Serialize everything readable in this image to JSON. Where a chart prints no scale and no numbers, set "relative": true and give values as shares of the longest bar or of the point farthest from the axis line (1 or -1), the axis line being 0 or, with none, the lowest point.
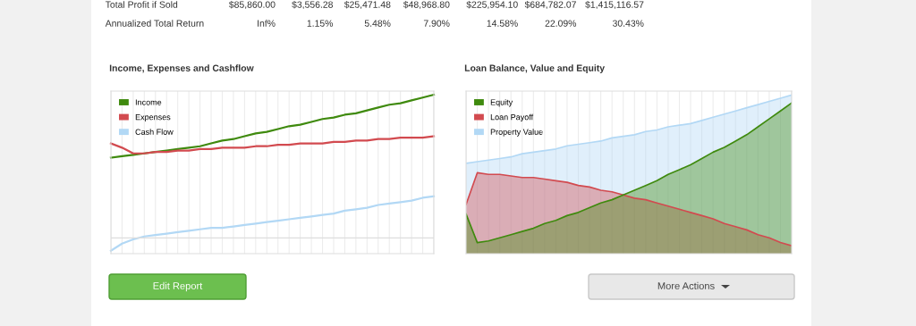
{
  "chart_data": [
    {
      "type": "other",
      "annotations": [
        "Total Profit if Sold",
        "$85,860.00",
        "$3,556.28",
        "$25,471.48",
        "$48,968.80",
        "$225,954.10",
        "$684,782.07",
        "$1,415,116.57",
        "Annualized Total Return",
        "Inf%",
        "1.15%",
        "5.48%",
        "7.90%",
        "14.58%",
        "22.09%",
        "30.43%"
      ]
    },
    {
      "type": "line",
      "title": "Income, Expenses and Cashflow",
      "relative": true,
      "grid": "x",
      "legend": "top left",
      "marker": "none",
      "line_style": "solid",
      "categories": [
        null,
        null,
        null,
        null,
        null,
        null,
        null,
        null,
        null,
        null,
        null,
        null,
        null,
        null,
        null,
        null,
        null,
        null,
        null,
        null,
        null,
        null,
        null,
        null,
        null,
        null,
        null,
        null,
        null,
        null
      ],
      "series": [
        {
          "name": "Income",
          "color": "#3f8a0e",
          "values": [
            0.56,
            0.57,
            0.58,
            0.59,
            0.6,
            0.61,
            0.62,
            0.63,
            0.64,
            0.66,
            0.68,
            0.69,
            0.71,
            0.73,
            0.74,
            0.76,
            0.78,
            0.79,
            0.81,
            0.83,
            0.84,
            0.86,
            0.87,
            0.89,
            0.91,
            0.93,
            0.94,
            0.96,
            0.98,
            1.0
          ]
        },
        {
          "name": "Expenses",
          "color": "#d24a4f",
          "values": [
            0.66,
            0.63,
            0.59,
            0.59,
            0.6,
            0.6,
            0.61,
            0.61,
            0.62,
            0.62,
            0.63,
            0.63,
            0.63,
            0.64,
            0.64,
            0.65,
            0.65,
            0.66,
            0.66,
            0.66,
            0.67,
            0.67,
            0.68,
            0.68,
            0.69,
            0.69,
            0.7,
            0.7,
            0.7,
            0.71
          ]
        },
        {
          "name": "Cash Flow",
          "color": "#b2d8f5",
          "values": [
            -0.09,
            -0.04,
            -0.01,
            0.01,
            0.02,
            0.03,
            0.04,
            0.05,
            0.06,
            0.07,
            0.07,
            0.08,
            0.09,
            0.1,
            0.11,
            0.12,
            0.13,
            0.14,
            0.15,
            0.16,
            0.17,
            0.19,
            0.2,
            0.21,
            0.23,
            0.24,
            0.25,
            0.26,
            0.28,
            0.29
          ]
        }
      ]
    },
    {
      "type": "area",
      "title": "Loan Balance, Value and Equity",
      "relative": true,
      "grid": "x",
      "legend": "top left",
      "categories": [
        null,
        null,
        null,
        null,
        null,
        null,
        null,
        null,
        null,
        null,
        null,
        null,
        null,
        null,
        null,
        null,
        null,
        null,
        null,
        null,
        null,
        null,
        null,
        null,
        null,
        null,
        null,
        null,
        null,
        null
      ],
      "series": [
        {
          "name": "Equity",
          "color": "#3f8a0e",
          "values": [
            0.25,
            0.07,
            0.08,
            0.1,
            0.12,
            0.14,
            0.16,
            0.19,
            0.21,
            0.24,
            0.26,
            0.29,
            0.32,
            0.34,
            0.37,
            0.4,
            0.43,
            0.46,
            0.5,
            0.53,
            0.56,
            0.6,
            0.64,
            0.67,
            0.71,
            0.75,
            0.8,
            0.85,
            0.9,
            0.95
          ]
        },
        {
          "name": "Loan Payoff",
          "color": "#d24a4f",
          "values": [
            0.31,
            0.51,
            0.5,
            0.5,
            0.49,
            0.48,
            0.48,
            0.47,
            0.46,
            0.45,
            0.43,
            0.42,
            0.4,
            0.39,
            0.37,
            0.35,
            0.34,
            0.32,
            0.3,
            0.28,
            0.26,
            0.24,
            0.22,
            0.19,
            0.17,
            0.15,
            0.12,
            0.1,
            0.07,
            0.05
          ]
        },
        {
          "name": "Property Value",
          "color": "#b2d8f5",
          "values": [
            0.57,
            0.58,
            0.59,
            0.6,
            0.61,
            0.63,
            0.64,
            0.65,
            0.66,
            0.68,
            0.69,
            0.7,
            0.71,
            0.73,
            0.74,
            0.75,
            0.77,
            0.78,
            0.8,
            0.81,
            0.82,
            0.84,
            0.86,
            0.88,
            0.9,
            0.92,
            0.94,
            0.96,
            0.98,
            1.0
          ]
        }
      ]
    },
    {
      "type": "other",
      "annotations": [
        "Edit Report",
        "More Actions"
      ]
    }
  ]
}
